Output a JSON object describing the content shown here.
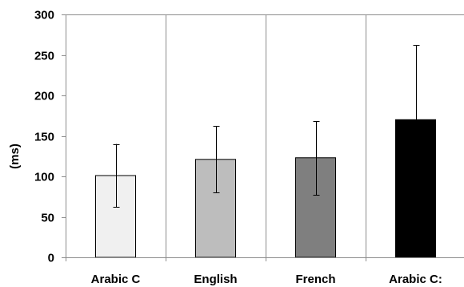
{
  "chart_data": {
    "type": "bar",
    "title": "",
    "xlabel": "",
    "ylabel": "(ms)",
    "categories": [
      "Arabic C",
      "English",
      "French",
      "Arabic C:"
    ],
    "values": [
      101,
      121,
      123,
      170
    ],
    "error_up": [
      140,
      162,
      168,
      262
    ],
    "error_down": [
      62,
      80,
      77,
      78
    ],
    "ylim": [
      0,
      300
    ],
    "yticks": [
      0,
      50,
      100,
      150,
      200,
      250,
      300
    ],
    "grid": "vertical lines between categories",
    "bar_colors": [
      "#f0f0f0",
      "#bdbdbd",
      "#7f7f7f",
      "#000000"
    ],
    "legend": "none"
  }
}
